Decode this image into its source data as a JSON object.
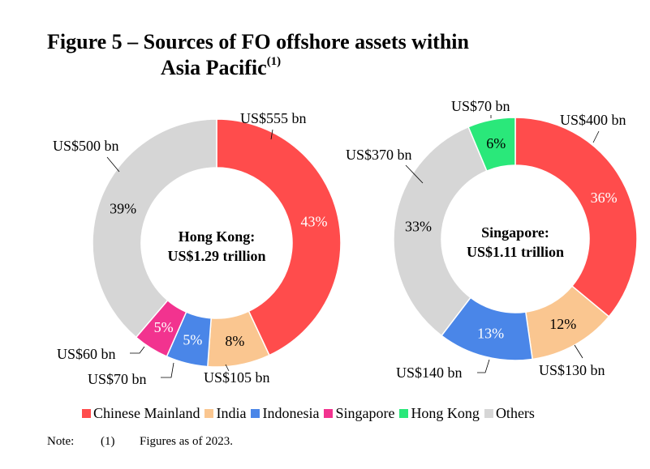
{
  "figure": {
    "title_line1": "Figure 5 – Sources of FO offshore assets within",
    "title_line2": "Asia Pacific",
    "title_sup": "(1)"
  },
  "colors": {
    "Chinese Mainland": "#ff4c4c",
    "India": "#fac690",
    "Indonesia": "#4a86e8",
    "Singapore": "#f2338f",
    "Hong Kong": "#2ae87a",
    "Others": "#d6d6d6"
  },
  "chart_data": [
    {
      "type": "pie",
      "donut": true,
      "center_label_line1": "Hong Kong:",
      "center_label_line2": "US$1.29 trillion",
      "slices": [
        {
          "name": "Chinese Mainland",
          "pct_label": "43%",
          "value_label": "US$555 bn",
          "value": 555
        },
        {
          "name": "India",
          "pct_label": "8%",
          "value_label": "US$105 bn",
          "value": 105
        },
        {
          "name": "Indonesia",
          "pct_label": "5%",
          "value_label": "US$70 bn",
          "value": 70
        },
        {
          "name": "Singapore",
          "pct_label": "5%",
          "value_label": "US$60 bn",
          "value": 60
        },
        {
          "name": "Others",
          "pct_label": "39%",
          "value_label": "US$500 bn",
          "value": 500
        }
      ]
    },
    {
      "type": "pie",
      "donut": true,
      "center_label_line1": "Singapore:",
      "center_label_line2": "US$1.11 trillion",
      "slices": [
        {
          "name": "Chinese Mainland",
          "pct_label": "36%",
          "value_label": "US$400 bn",
          "value": 400
        },
        {
          "name": "India",
          "pct_label": "12%",
          "value_label": "US$130 bn",
          "value": 130
        },
        {
          "name": "Indonesia",
          "pct_label": "13%",
          "value_label": "US$140 bn",
          "value": 140
        },
        {
          "name": "Others",
          "pct_label": "33%",
          "value_label": "US$370 bn",
          "value": 370
        },
        {
          "name": "Hong Kong",
          "pct_label": "6%",
          "value_label": "US$70 bn",
          "value": 70
        }
      ]
    }
  ],
  "legend": {
    "items": [
      "Chinese Mainland",
      "India",
      "Indonesia",
      "Singapore",
      "Hong Kong",
      "Others"
    ]
  },
  "note": {
    "label": "Note:",
    "number": "(1)",
    "text": "Figures as of 2023."
  }
}
